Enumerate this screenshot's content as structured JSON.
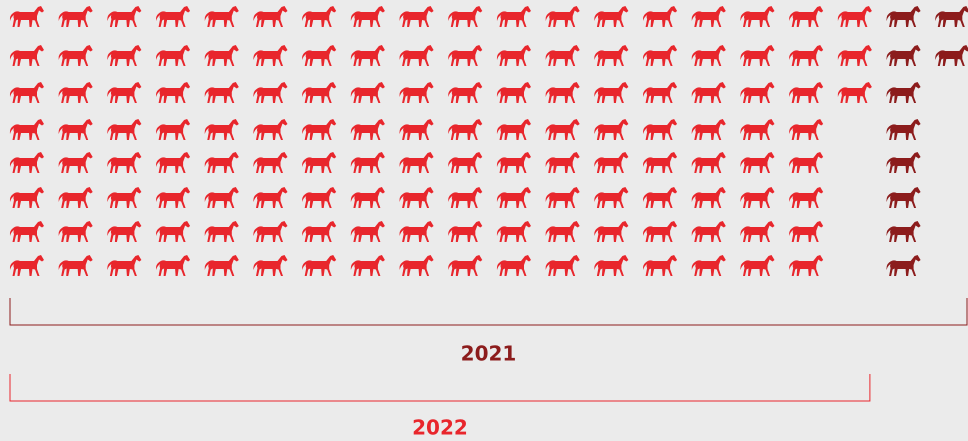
{
  "chart_data": {
    "type": "pictogram",
    "categories": [
      "2021",
      "2022"
    ],
    "values": [
      149,
      139
    ],
    "colors": [
      "#8c1c1c",
      "#e8262c"
    ]
  }
}
